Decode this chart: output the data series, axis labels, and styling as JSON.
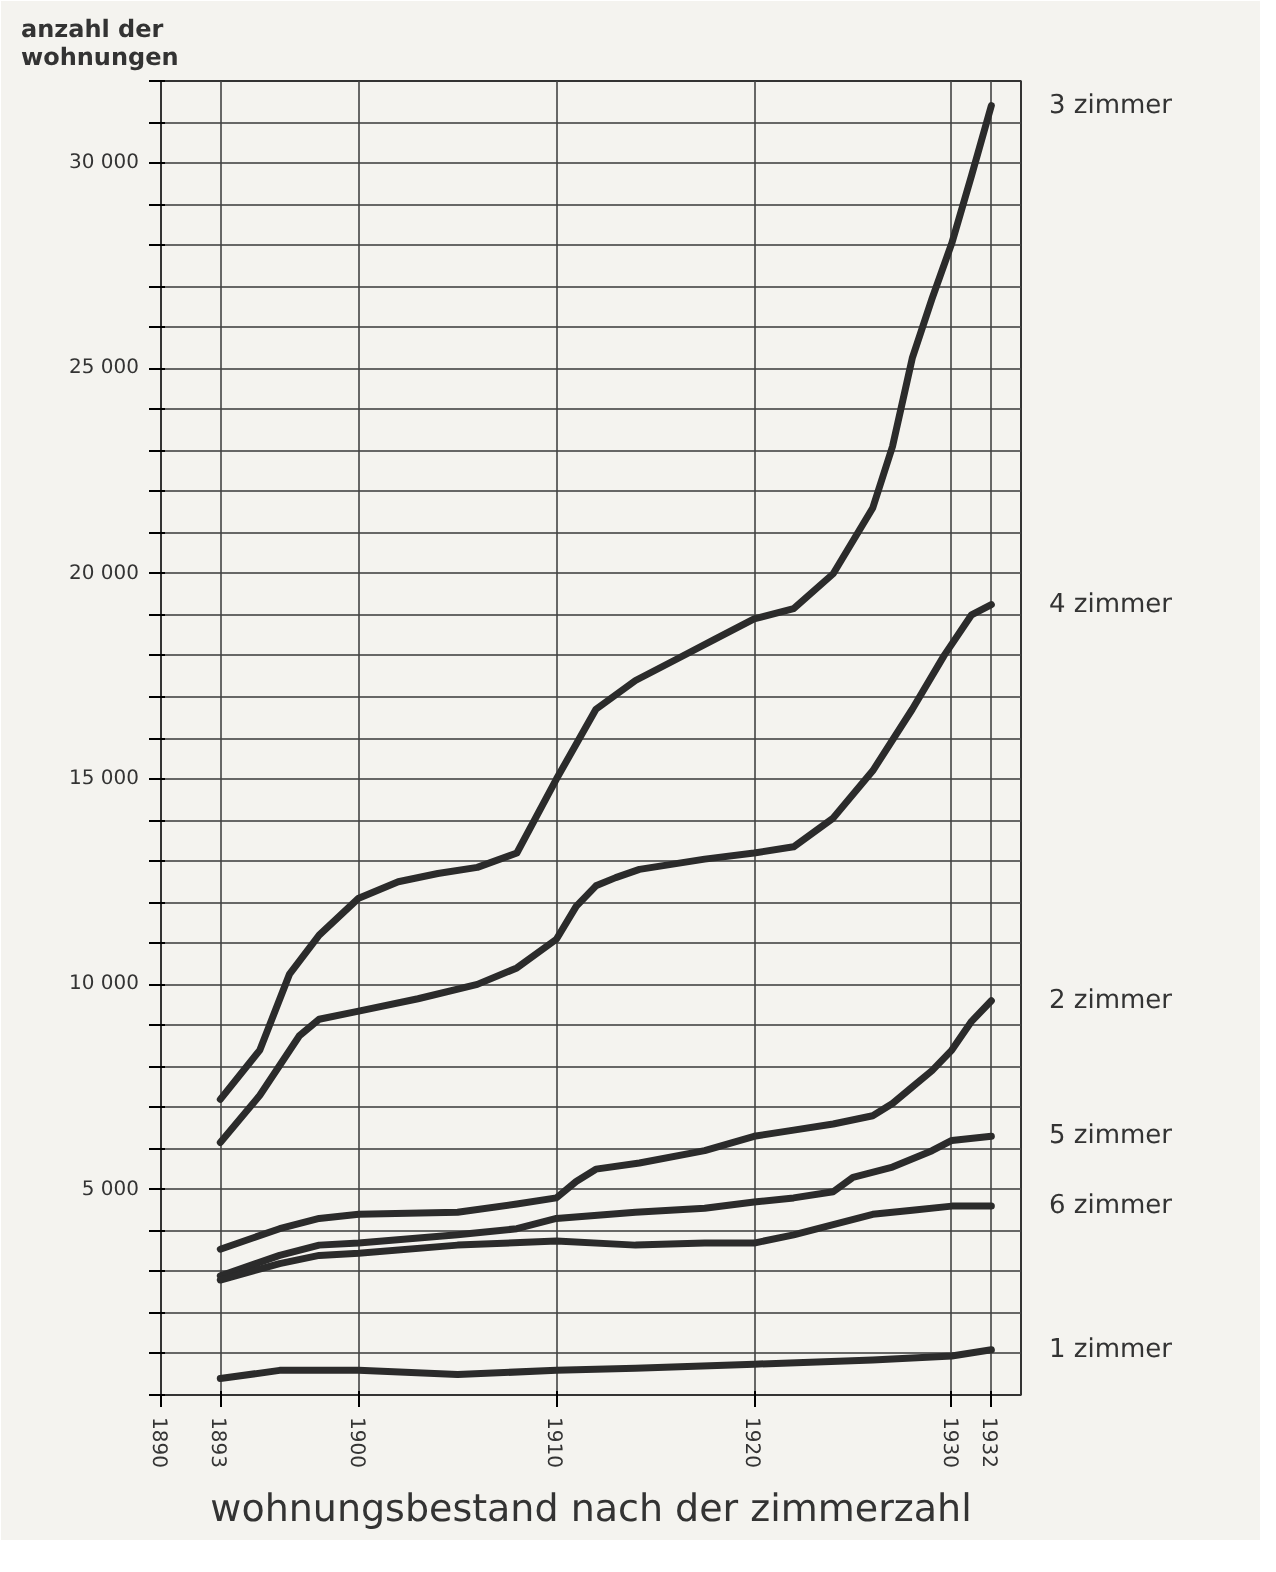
{
  "chart_data": {
    "type": "line",
    "title": "wohnungsbestand nach der zimmerzahl",
    "ylabel": "anzahl der\nwohnungen",
    "xlim": [
      1890,
      1933.5
    ],
    "ylim": [
      0,
      32000
    ],
    "xticks": [
      1890,
      1893,
      1900,
      1910,
      1920,
      1930,
      1932
    ],
    "yticks": [
      {
        "value": 0,
        "label": null
      },
      {
        "value": 1000,
        "label": null
      },
      {
        "value": 2000,
        "label": null
      },
      {
        "value": 3000,
        "label": null
      },
      {
        "value": 4000,
        "label": null
      },
      {
        "value": 5000,
        "label": "5 000"
      },
      {
        "value": 6000,
        "label": null
      },
      {
        "value": 7000,
        "label": null
      },
      {
        "value": 8000,
        "label": null
      },
      {
        "value": 9000,
        "label": null
      },
      {
        "value": 10000,
        "label": "10 000"
      },
      {
        "value": 11000,
        "label": null
      },
      {
        "value": 12000,
        "label": null
      },
      {
        "value": 13000,
        "label": null
      },
      {
        "value": 14000,
        "label": null
      },
      {
        "value": 15000,
        "label": "15 000"
      },
      {
        "value": 16000,
        "label": null
      },
      {
        "value": 17000,
        "label": null
      },
      {
        "value": 18000,
        "label": null
      },
      {
        "value": 19000,
        "label": null
      },
      {
        "value": 20000,
        "label": "20 000"
      },
      {
        "value": 21000,
        "label": null
      },
      {
        "value": 22000,
        "label": null
      },
      {
        "value": 23000,
        "label": null
      },
      {
        "value": 24000,
        "label": null
      },
      {
        "value": 25000,
        "label": "25 000"
      },
      {
        "value": 26000,
        "label": null
      },
      {
        "value": 27000,
        "label": null
      },
      {
        "value": 28000,
        "label": null
      },
      {
        "value": 29000,
        "label": null
      },
      {
        "value": 30000,
        "label": "30 000"
      },
      {
        "value": 31000,
        "label": null
      },
      {
        "value": 32000,
        "label": null
      }
    ],
    "grid": true,
    "legend": false,
    "marker": "none",
    "line_style": "solid",
    "series": [
      {
        "name": "3 zimmer",
        "color": "#2b2b2b",
        "x": [
          1893,
          1895,
          1896.5,
          1898,
          1900,
          1902,
          1904,
          1906,
          1908,
          1910,
          1912,
          1914,
          1916,
          1918,
          1920,
          1922,
          1924,
          1926,
          1927,
          1928,
          1929,
          1930,
          1931,
          1932
        ],
        "values": [
          7200,
          8400,
          10250,
          11200,
          12100,
          12500,
          12700,
          12850,
          13200,
          15000,
          16700,
          17400,
          17900,
          18400,
          18900,
          19150,
          20000,
          21600,
          23100,
          25250,
          26700,
          28050,
          29700,
          31400
        ]
      },
      {
        "name": "4 zimmer",
        "color": "#2b2b2b",
        "x": [
          1893,
          1895,
          1897,
          1898,
          1900,
          1903,
          1906,
          1908,
          1910,
          1911,
          1912,
          1913,
          1914.2,
          1917.5,
          1920,
          1922,
          1924,
          1926,
          1928,
          1929.6,
          1931,
          1932
        ],
        "values": [
          6150,
          7300,
          8750,
          9150,
          9350,
          9650,
          10000,
          10400,
          11100,
          11900,
          12400,
          12600,
          12800,
          13050,
          13200,
          13350,
          14050,
          15200,
          16700,
          18000,
          19000,
          19250
        ]
      },
      {
        "name": "2 zimmer",
        "color": "#2b2b2b",
        "x": [
          1893,
          1896,
          1898,
          1900,
          1905,
          1908,
          1910,
          1911,
          1912,
          1914.2,
          1917.5,
          1920,
          1922,
          1924,
          1926,
          1927,
          1928,
          1929,
          1930,
          1931,
          1932
        ],
        "values": [
          3550,
          4050,
          4300,
          4400,
          4450,
          4650,
          4800,
          5200,
          5500,
          5650,
          5950,
          6300,
          6450,
          6600,
          6800,
          7100,
          7500,
          7900,
          8400,
          9100,
          9600
        ]
      },
      {
        "name": "5 zimmer",
        "color": "#2b2b2b",
        "x": [
          1893,
          1896,
          1898,
          1900,
          1905,
          1908,
          1910,
          1914,
          1917.5,
          1920,
          1922,
          1924,
          1925,
          1927,
          1929,
          1930,
          1932
        ],
        "values": [
          2900,
          3400,
          3650,
          3700,
          3900,
          4050,
          4300,
          4450,
          4550,
          4700,
          4800,
          4950,
          5300,
          5550,
          5950,
          6200,
          6300
        ]
      },
      {
        "name": "6 zimmer",
        "color": "#2b2b2b",
        "x": [
          1893,
          1896,
          1898,
          1900,
          1905,
          1910,
          1914,
          1917.5,
          1920,
          1922,
          1924,
          1926,
          1928,
          1930,
          1932
        ],
        "values": [
          2800,
          3200,
          3400,
          3450,
          3650,
          3750,
          3650,
          3700,
          3700,
          3900,
          4150,
          4400,
          4500,
          4600,
          4600
        ]
      },
      {
        "name": "1 zimmer",
        "color": "#2b2b2b",
        "x": [
          1893,
          1896,
          1900,
          1905,
          1910,
          1914,
          1920,
          1926,
          1930,
          1932
        ],
        "values": [
          400,
          600,
          600,
          500,
          600,
          650,
          750,
          850,
          950,
          1100
        ]
      }
    ]
  }
}
